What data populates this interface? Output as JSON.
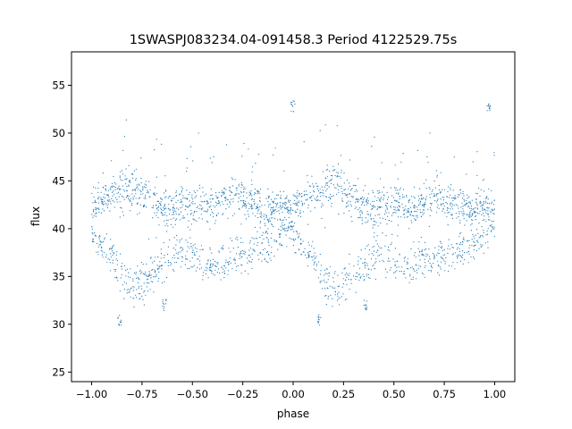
{
  "chart_data": {
    "type": "scatter",
    "title": "1SWASPJ083234.04-091458.3 Period 4122529.75s",
    "xlabel": "phase",
    "ylabel": "flux",
    "xlim": [
      -1.1,
      1.1
    ],
    "ylim": [
      24,
      58.5
    ],
    "x_ticks": [
      -1.0,
      -0.75,
      -0.5,
      -0.25,
      0.0,
      0.25,
      0.5,
      0.75,
      1.0
    ],
    "x_tick_labels": [
      "−1.00",
      "−0.75",
      "−0.50",
      "−0.25",
      "0.00",
      "0.25",
      "0.50",
      "0.75",
      "1.00"
    ],
    "y_ticks": [
      25,
      30,
      35,
      40,
      45,
      50,
      55
    ],
    "y_tick_labels": [
      "25",
      "30",
      "35",
      "40",
      "45",
      "50",
      "55"
    ],
    "grid": false,
    "marker_color": "#1f77b4",
    "series": [
      {
        "description_note": "",
        "phase_flux_profile": {
          "x": [
            -1.0,
            -0.95,
            -0.9,
            -0.85,
            -0.8,
            -0.75,
            -0.7,
            -0.65,
            -0.6,
            -0.55,
            -0.5,
            -0.45,
            -0.4,
            -0.35,
            -0.3,
            -0.25,
            -0.2,
            -0.15,
            -0.1,
            -0.05,
            0.0
          ],
          "upper_band": [
            42.5,
            43.0,
            43.5,
            44.0,
            44.5,
            44.0,
            43.0,
            42.5,
            42.0,
            42.5,
            42.5,
            42.5,
            42.0,
            43.0,
            43.5,
            43.0,
            42.5,
            42.0,
            42.0,
            42.5,
            42.0
          ],
          "lower_band": [
            39.5,
            38.0,
            37.0,
            35.0,
            34.0,
            34.5,
            35.0,
            36.0,
            37.0,
            37.5,
            37.0,
            36.0,
            36.0,
            36.5,
            37.0,
            37.5,
            37.5,
            38.0,
            38.5,
            39.5,
            40.0
          ],
          "spread": [
            2.0,
            2.0,
            2.0,
            3.0,
            3.0,
            3.0,
            2.5,
            2.5,
            3.0,
            2.5,
            3.0,
            2.5,
            2.5,
            2.5,
            2.5,
            2.5,
            2.5,
            2.5,
            2.0,
            2.0,
            2.0
          ]
        },
        "outlier_clusters": [
          {
            "x": 0.0,
            "y": 52.8
          },
          {
            "x": 0.97,
            "y": 52.8
          },
          {
            "x": -0.86,
            "y": 30.5
          },
          {
            "x": 0.13,
            "y": 30.5
          },
          {
            "x": -0.64,
            "y": 32.0
          },
          {
            "x": 0.36,
            "y": 32.0
          }
        ]
      }
    ]
  }
}
